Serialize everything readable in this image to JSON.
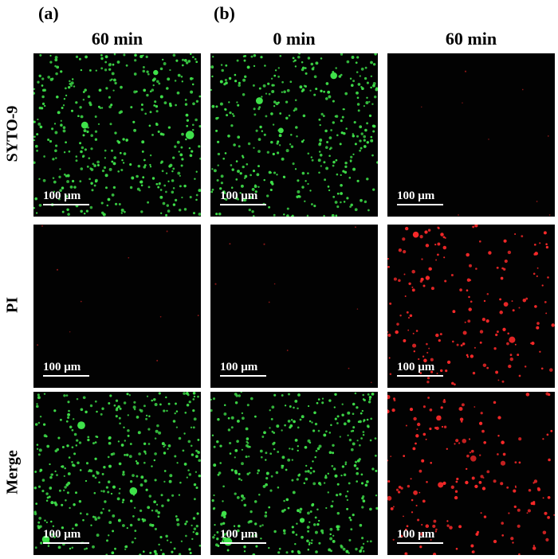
{
  "panel_labels": [
    "(a)",
    "(b)"
  ],
  "column_headers": [
    "60 min",
    "0 min",
    "60 min"
  ],
  "row_labels": [
    "SYTO-9",
    "PI",
    "Merge"
  ],
  "scale_bar_label": "100 μm",
  "colors": {
    "live_stain": "#3fe24a",
    "dead_stain": "#ff2a2a",
    "background": "#020202"
  },
  "tiles": [
    {
      "row": "SYTO-9",
      "column": 0,
      "stain": "green",
      "density": "high"
    },
    {
      "row": "SYTO-9",
      "column": 1,
      "stain": "green",
      "density": "high"
    },
    {
      "row": "SYTO-9",
      "column": 2,
      "stain": "red",
      "density": "trace"
    },
    {
      "row": "PI",
      "column": 0,
      "stain": "red",
      "density": "trace"
    },
    {
      "row": "PI",
      "column": 1,
      "stain": "red",
      "density": "trace"
    },
    {
      "row": "PI",
      "column": 2,
      "stain": "red",
      "density": "high"
    },
    {
      "row": "Merge",
      "column": 0,
      "stain": "green",
      "density": "high"
    },
    {
      "row": "Merge",
      "column": 1,
      "stain": "green",
      "density": "high"
    },
    {
      "row": "Merge",
      "column": 2,
      "stain": "red",
      "density": "high"
    }
  ]
}
